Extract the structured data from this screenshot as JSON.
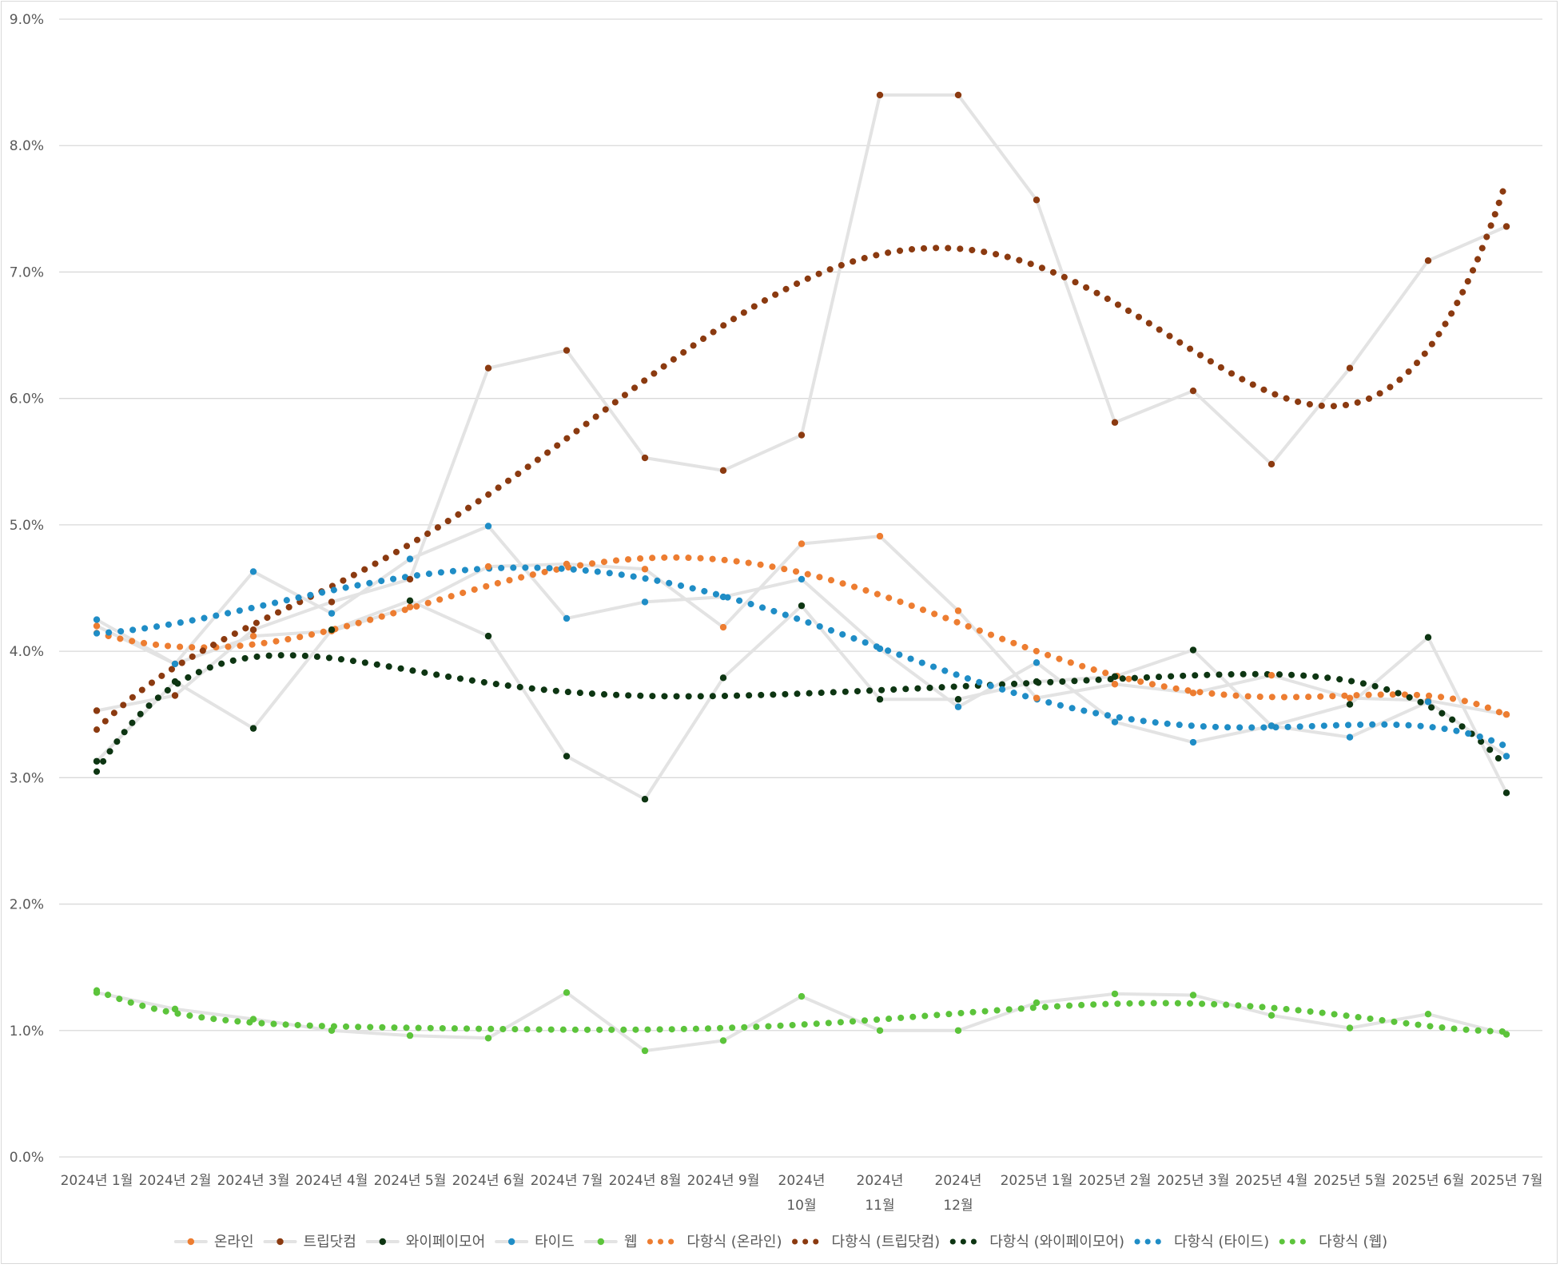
{
  "chart_data": {
    "type": "line",
    "title": "",
    "xlabel": "",
    "ylabel": "",
    "ylim": [
      0,
      9
    ],
    "grid": true,
    "legend_position": "bottom",
    "y_ticks": [
      "0.0%",
      "1.0%",
      "2.0%",
      "3.0%",
      "4.0%",
      "5.0%",
      "6.0%",
      "7.0%",
      "8.0%",
      "9.0%"
    ],
    "categories": [
      [
        "2024년 1월"
      ],
      [
        "2024년 2월"
      ],
      [
        "2024년 3월"
      ],
      [
        "2024년 4월"
      ],
      [
        "2024년 5월"
      ],
      [
        "2024년 6월"
      ],
      [
        "2024년 7월"
      ],
      [
        "2024년 8월"
      ],
      [
        "2024년 9월"
      ],
      [
        "2024년",
        "10월"
      ],
      [
        "2024년",
        "11월"
      ],
      [
        "2024년",
        "12월"
      ],
      [
        "2025년 1월"
      ],
      [
        "2025년 2월"
      ],
      [
        "2025년 3월"
      ],
      [
        "2025년 4월"
      ],
      [
        "2025년 5월"
      ],
      [
        "2025년 6월"
      ],
      [
        "2025년 7월"
      ]
    ],
    "series": [
      {
        "name": "온라인",
        "color": "#ED7D31",
        "values": [
          4.2,
          3.9,
          4.12,
          4.16,
          4.35,
          4.67,
          4.69,
          4.65,
          4.19,
          4.85,
          4.91,
          4.32,
          3.63,
          3.74,
          3.67,
          3.81,
          3.63,
          3.61,
          3.5
        ]
      },
      {
        "name": "트립닷컴",
        "color": "#8B3A10",
        "values": [
          3.53,
          3.65,
          4.17,
          4.39,
          4.57,
          6.24,
          6.38,
          5.53,
          5.43,
          5.71,
          8.4,
          8.4,
          7.57,
          5.81,
          6.06,
          5.48,
          6.24,
          7.09,
          7.36
        ]
      },
      {
        "name": "와이페이모어",
        "color": "#0D3512",
        "values": [
          3.13,
          3.76,
          3.39,
          4.17,
          4.4,
          4.12,
          3.17,
          2.83,
          3.79,
          4.36,
          3.62,
          3.62,
          3.76,
          3.8,
          4.01,
          3.41,
          3.58,
          4.11,
          2.88
        ]
      },
      {
        "name": "타이드",
        "color": "#1F8DC6",
        "values": [
          4.25,
          3.9,
          4.63,
          4.3,
          4.73,
          4.99,
          4.26,
          4.39,
          4.43,
          4.57,
          4.02,
          3.56,
          3.91,
          3.44,
          3.28,
          3.41,
          3.32,
          3.6,
          3.17
        ]
      },
      {
        "name": "웹",
        "color": "#5CC43B",
        "values": [
          1.3,
          1.17,
          1.09,
          1.0,
          0.96,
          0.94,
          1.3,
          0.84,
          0.92,
          1.27,
          1.0,
          1.0,
          1.22,
          1.29,
          1.28,
          1.12,
          1.02,
          1.13,
          0.97
        ]
      }
    ],
    "trendlines": [
      {
        "name": "다항식 (온라인)",
        "color": "#ED7D31",
        "of": "온라인"
      },
      {
        "name": "다항식 (트립닷컴)",
        "color": "#8B3A10",
        "of": "트립닷컴"
      },
      {
        "name": "다항식 (와이페이모어)",
        "color": "#0D3512",
        "of": "와이페이모어"
      },
      {
        "name": "다항식 (타이드)",
        "color": "#1F8DC6",
        "of": "타이드"
      },
      {
        "name": "다항식 (웹)",
        "color": "#5CC43B",
        "of": "웹"
      }
    ],
    "line_color": "#E3E3E3"
  }
}
